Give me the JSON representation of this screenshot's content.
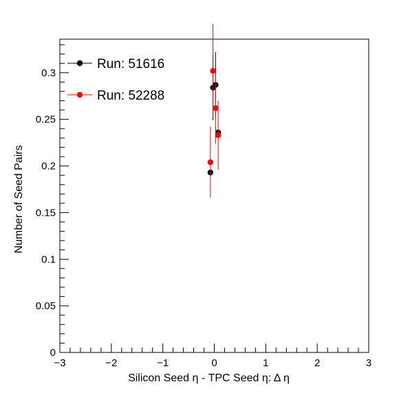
{
  "chart_data": {
    "type": "scatter",
    "xlabel": "Silicon Seed  η - TPC Seed  η: Δ η",
    "ylabel": "Number of Seed Pairs",
    "xlim": [
      -3,
      3
    ],
    "ylim": [
      0,
      0.336
    ],
    "x_ticks": [
      -3,
      -2,
      -1,
      0,
      1,
      2,
      3
    ],
    "y_ticks": [
      0,
      0.05,
      0.1,
      0.15,
      0.2,
      0.25,
      0.3
    ],
    "x_tick_labels": [
      "−3",
      "−2",
      "−1",
      "0",
      "1",
      "2",
      "3"
    ],
    "y_tick_labels": [
      "0",
      "0.05",
      "0.1",
      "0.15",
      "0.2",
      "0.25",
      "0.3"
    ],
    "grid": false,
    "legend_position": "top-left",
    "series": [
      {
        "name": "Run: 51616",
        "color": "#000000",
        "points": [
          {
            "x": -0.075,
            "y": 0.193,
            "err": 0.0
          },
          {
            "x": -0.025,
            "y": 0.284,
            "err": 0.035
          },
          {
            "x": 0.025,
            "y": 0.287,
            "err": 0.035
          },
          {
            "x": 0.075,
            "y": 0.236,
            "err": 0.0
          }
        ]
      },
      {
        "name": "Run: 52288",
        "color": "#ff0000",
        "points": [
          {
            "x": -0.075,
            "y": 0.204,
            "err": 0.038
          },
          {
            "x": -0.025,
            "y": 0.302,
            "err": 0.05
          },
          {
            "x": 0.025,
            "y": 0.262,
            "err": 0.038
          },
          {
            "x": 0.075,
            "y": 0.233,
            "err": 0.037
          }
        ]
      }
    ]
  }
}
